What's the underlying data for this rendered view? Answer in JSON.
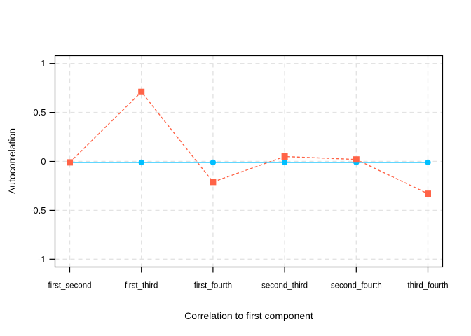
{
  "chart_data": {
    "type": "line",
    "title": "",
    "xlabel": "Correlation to first component",
    "ylabel": "Autocorrelation",
    "categories": [
      "first_second",
      "first_third",
      "first_fourth",
      "second_third",
      "second_fourth",
      "third_fourth"
    ],
    "series": [
      {
        "name": "red-dashed-squares",
        "color": "#ff6347",
        "marker": "square",
        "line_style": "dashed",
        "values": [
          -0.01,
          0.71,
          -0.21,
          0.05,
          0.02,
          -0.33
        ]
      },
      {
        "name": "blue-solid-circles",
        "color": "#00bfff",
        "marker": "circle",
        "line_style": "solid",
        "values": [
          -0.01,
          -0.01,
          -0.01,
          -0.01,
          -0.01,
          -0.01
        ]
      }
    ],
    "ylim": [
      -1.08,
      1.08
    ],
    "yticks": [
      -1,
      -0.5,
      0,
      0.5,
      1
    ],
    "ytick_labels": [
      "-1",
      "-0.5",
      "0",
      "0.5",
      "1"
    ],
    "grid": true,
    "legend_position": "none",
    "colors": {
      "grid": "#e3e3e3",
      "axis": "#000000",
      "text": "#000000",
      "background": "#ffffff"
    }
  }
}
